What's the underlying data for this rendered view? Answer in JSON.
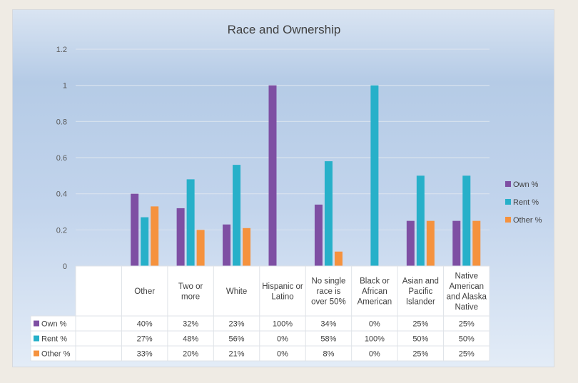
{
  "chart_data": {
    "type": "bar",
    "title": "Race and Ownership",
    "xlabel": "",
    "ylabel": "",
    "ylim": [
      0,
      1.2
    ],
    "yticks": [
      "0",
      "0.2",
      "0.4",
      "0.6",
      "0.8",
      "1",
      "1.2"
    ],
    "ytick_values": [
      0,
      0.2,
      0.4,
      0.6,
      0.8,
      1,
      1.2
    ],
    "grid": true,
    "legend_position": "right",
    "data_table": true,
    "categories": [
      "",
      "Other",
      "Two or more",
      "White",
      "Hispanic or Latino",
      "No single race is over 50%",
      "Black or African American",
      "Asian and Pacific Islander",
      "Native American and Alaska Native"
    ],
    "category_lines": [
      [],
      [
        "Other"
      ],
      [
        "Two or",
        "more"
      ],
      [
        "White"
      ],
      [
        "Hispanic or",
        "Latino"
      ],
      [
        "No single",
        "race is",
        "over 50%"
      ],
      [
        "Black or",
        "African",
        "American"
      ],
      [
        "Asian and",
        "Pacific",
        "Islander"
      ],
      [
        "Native",
        "American",
        "and Alaska",
        "Native"
      ]
    ],
    "series": [
      {
        "name": "Own %",
        "color": "#7e4fa3",
        "values": [
          null,
          0.4,
          0.32,
          0.23,
          1.0,
          0.34,
          0.0,
          0.25,
          0.25
        ],
        "labels": [
          "",
          "40%",
          "32%",
          "23%",
          "100%",
          "34%",
          "0%",
          "25%",
          "25%"
        ]
      },
      {
        "name": "Rent %",
        "color": "#27b0c9",
        "values": [
          null,
          0.27,
          0.48,
          0.56,
          0.0,
          0.58,
          1.0,
          0.5,
          0.5
        ],
        "labels": [
          "",
          "27%",
          "48%",
          "56%",
          "0%",
          "58%",
          "100%",
          "50%",
          "50%"
        ]
      },
      {
        "name": "Other %",
        "color": "#f5923e",
        "values": [
          null,
          0.33,
          0.2,
          0.21,
          0.0,
          0.08,
          0.0,
          0.25,
          0.25
        ],
        "labels": [
          "",
          "33%",
          "20%",
          "21%",
          "0%",
          "8%",
          "0%",
          "25%",
          "25%"
        ]
      }
    ]
  }
}
